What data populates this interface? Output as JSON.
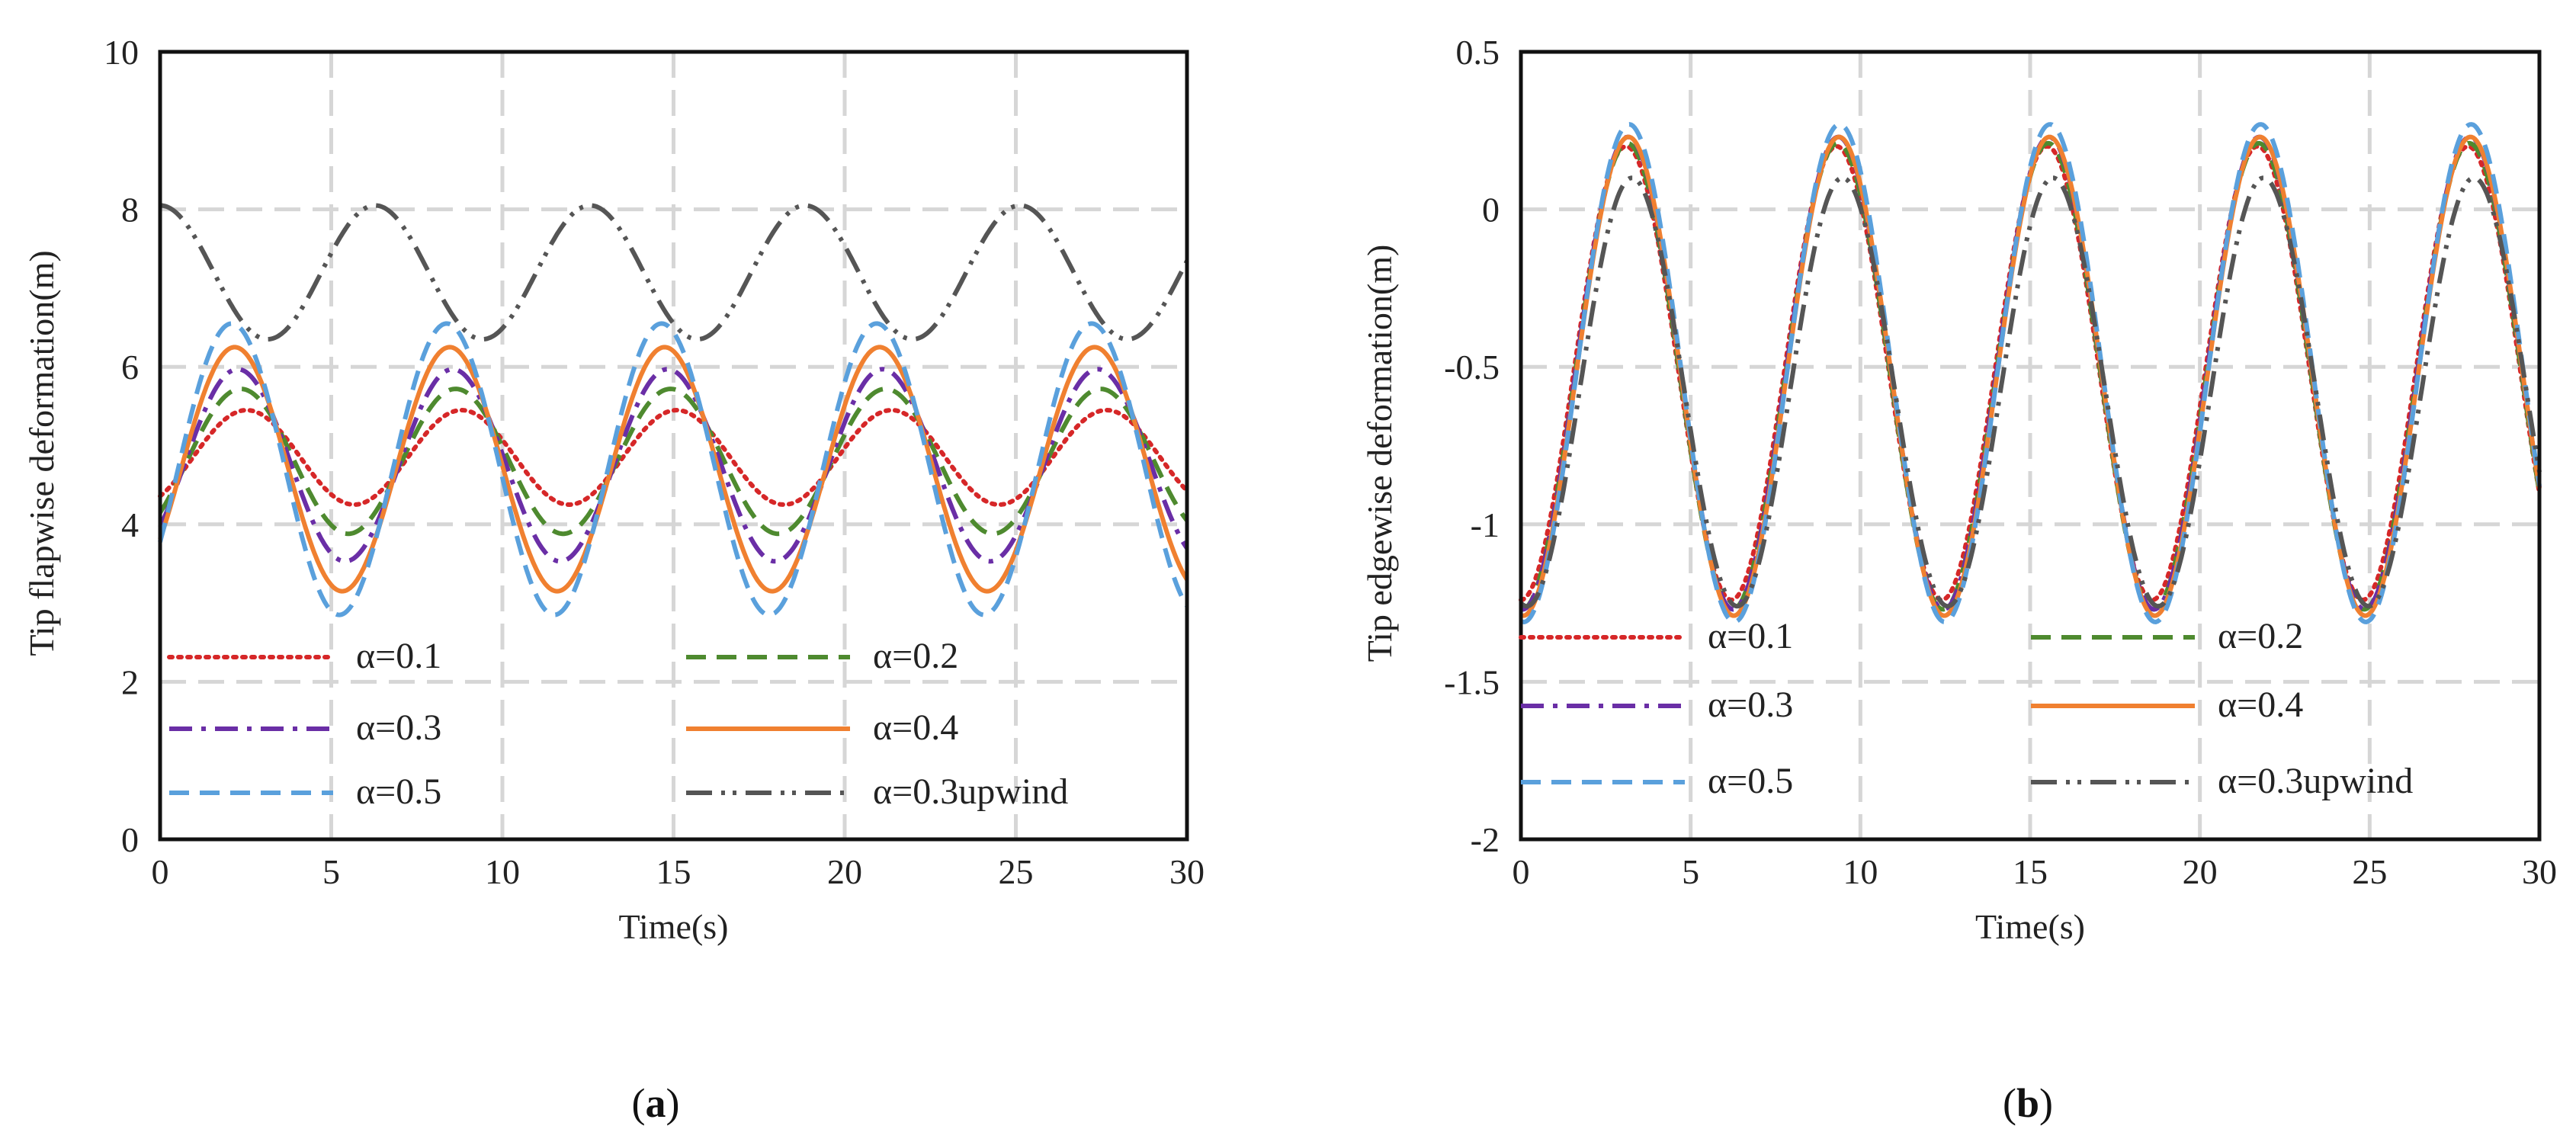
{
  "chart_data": [
    {
      "type": "line",
      "panel": "a",
      "caption_open": "(",
      "caption_letter": "a",
      "caption_close": ")",
      "xlabel": "Time(s)",
      "ylabel": "Tip flapwise deformation(m)",
      "xlim": [
        0,
        30
      ],
      "ylim": [
        0,
        10
      ],
      "xticks": [
        0,
        5,
        10,
        15,
        20,
        25,
        30
      ],
      "yticks": [
        0,
        2,
        4,
        6,
        8,
        10
      ],
      "grid": true,
      "legend_location": "bottom, two columns",
      "period_s": 6.28,
      "series": [
        {
          "name": "α=0.1",
          "style": "dotted",
          "color": "#d62728",
          "mean": 4.85,
          "amplitude": 0.6,
          "phase_deg": -55
        },
        {
          "name": "α=0.2",
          "style": "dashed",
          "color": "#4e8a2f",
          "mean": 4.8,
          "amplitude": 0.92,
          "phase_deg": -45
        },
        {
          "name": "α=0.3",
          "style": "dash-dot",
          "color": "#6a2ea6",
          "mean": 4.75,
          "amplitude": 1.22,
          "phase_deg": -40
        },
        {
          "name": "α=0.4",
          "style": "solid",
          "color": "#f08030",
          "mean": 4.7,
          "amplitude": 1.55,
          "phase_deg": -35
        },
        {
          "name": "α=0.5",
          "style": "dashed",
          "color": "#5aa0dc",
          "mean": 4.7,
          "amplitude": 1.85,
          "phase_deg": -30
        },
        {
          "name": "α=0.3upwind",
          "style": "dash-dot-dot",
          "color": "#555555",
          "mean": 7.2,
          "amplitude": 0.85,
          "phase_deg": 90
        }
      ]
    },
    {
      "type": "line",
      "panel": "b",
      "caption_open": "(",
      "caption_letter": "b",
      "caption_close": ")",
      "xlabel": "Time(s)",
      "ylabel": "Tip edgewise deformation(m)",
      "xlim": [
        0,
        30
      ],
      "ylim": [
        -2,
        0.5
      ],
      "xticks": [
        0,
        5,
        10,
        15,
        20,
        25,
        30
      ],
      "yticks": [
        -2,
        -1.5,
        -1,
        -0.5,
        0,
        0.5
      ],
      "ytick_labels": [
        "-2",
        "-1.5",
        "-1",
        "-0.5",
        "0",
        "0.5"
      ],
      "grid": true,
      "legend_location": "bottom, two columns",
      "period_s": 6.2,
      "series": [
        {
          "name": "α=0.1",
          "style": "dotted",
          "color": "#d62728",
          "mean": -0.52,
          "amplitude": 0.72,
          "phase_deg": -90
        },
        {
          "name": "α=0.2",
          "style": "dashed",
          "color": "#4e8a2f",
          "mean": -0.53,
          "amplitude": 0.74,
          "phase_deg": -92
        },
        {
          "name": "α=0.3",
          "style": "dash-dot",
          "color": "#6a2ea6",
          "mean": -0.52,
          "amplitude": 0.75,
          "phase_deg": -93
        },
        {
          "name": "α=0.4",
          "style": "solid",
          "color": "#f08030",
          "mean": -0.53,
          "amplitude": 0.76,
          "phase_deg": -94
        },
        {
          "name": "α=0.5",
          "style": "dashed",
          "color": "#5aa0dc",
          "mean": -0.52,
          "amplitude": 0.79,
          "phase_deg": -95
        },
        {
          "name": "α=0.3upwind",
          "style": "dash-dot-dot",
          "color": "#555555",
          "mean": -0.58,
          "amplitude": 0.68,
          "phase_deg": -100
        }
      ]
    }
  ]
}
